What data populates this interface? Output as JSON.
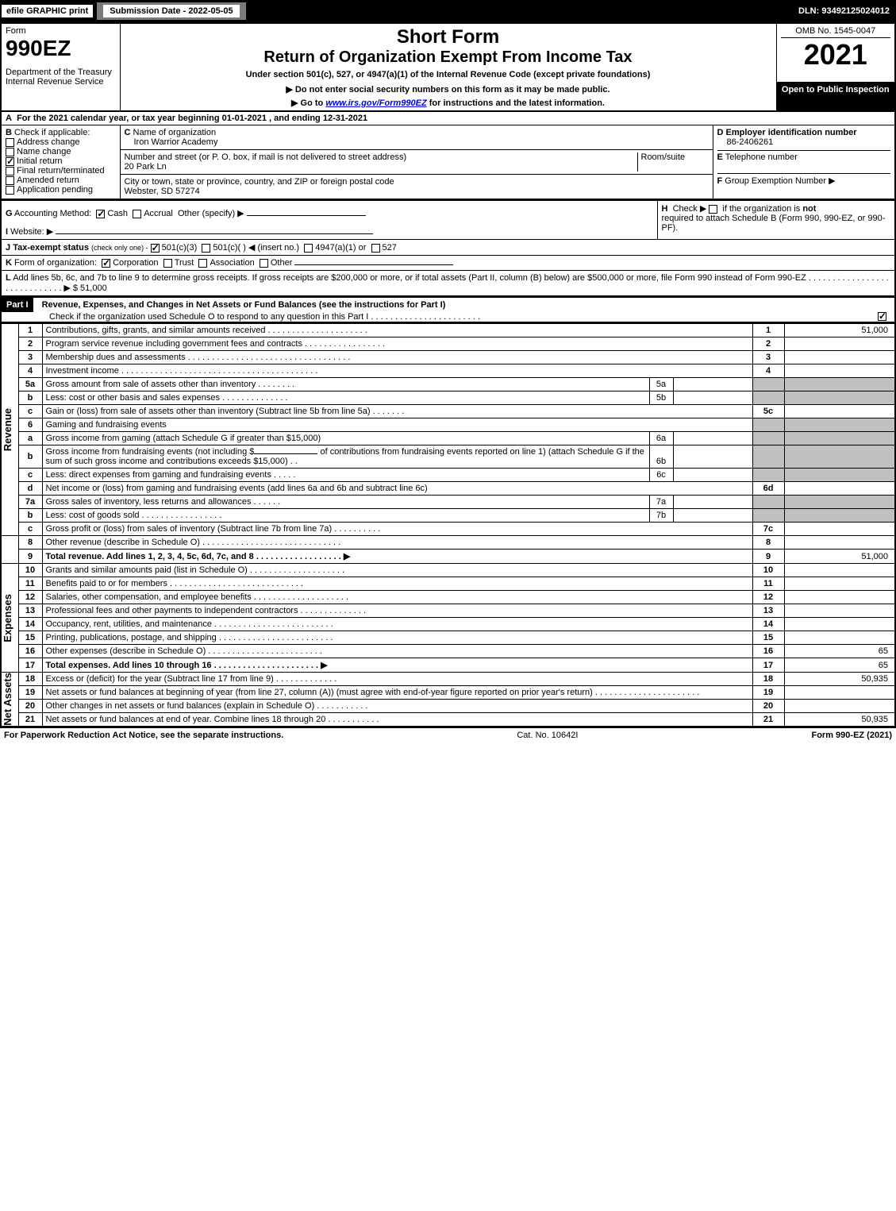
{
  "top": {
    "efile": "efile GRAPHIC print",
    "sub_label": "Submission Date - 2022-05-05",
    "dln": "DLN: 93492125024012"
  },
  "header": {
    "form_word": "Form",
    "form_num": "990EZ",
    "dept": "Department of the Treasury\nInternal Revenue Service",
    "short_form": "Short Form",
    "title": "Return of Organization Exempt From Income Tax",
    "under": "Under section 501(c), 527, or 4947(a)(1) of the Internal Revenue Code (except private foundations)",
    "ssn_warn": "▶ Do not enter social security numbers on this form as it may be made public.",
    "goto": "▶ Go to www.irs.gov/Form990EZ for instructions and the latest information.",
    "omb": "OMB No. 1545-0047",
    "year": "2021",
    "open": "Open to Public Inspection"
  },
  "A": {
    "text": "For the 2021 calendar year, or tax year beginning 01-01-2021 , and ending 12-31-2021"
  },
  "B": {
    "label": "Check if applicable:",
    "opts": [
      {
        "l": "Address change",
        "c": false
      },
      {
        "l": "Name change",
        "c": false
      },
      {
        "l": "Initial return",
        "c": true
      },
      {
        "l": "Final return/terminated",
        "c": false
      },
      {
        "l": "Amended return",
        "c": false
      },
      {
        "l": "Application pending",
        "c": false
      }
    ]
  },
  "C": {
    "name_label": "Name of organization",
    "name": "Iron Warrior Academy",
    "addr_label": "Number and street (or P. O. box, if mail is not delivered to street address)",
    "addr": "20 Park Ln",
    "room_label": "Room/suite",
    "city_label": "City or town, state or province, country, and ZIP or foreign postal code",
    "city": "Webster, SD  57274"
  },
  "D": {
    "label": "Employer identification number",
    "val": "86-2406261"
  },
  "E": {
    "label": "Telephone number",
    "val": ""
  },
  "F": {
    "label": "Group Exemption Number ▶",
    "val": ""
  },
  "G": {
    "label": "Accounting Method:",
    "cash": "Cash",
    "accrual": "Accrual",
    "other": "Other (specify) ▶"
  },
  "H": {
    "text1": "Check ▶",
    "text2": "if the organization is",
    "not": "not",
    "text3": "required to attach Schedule B (Form 990, 990-EZ, or 990-PF)."
  },
  "I": {
    "label": "Website: ▶"
  },
  "J": {
    "label": "Tax-exempt status",
    "hint": "(check only one) -",
    "o1": "501(c)(3)",
    "o2": "501(c)(  )",
    "ins": "◀ (insert no.)",
    "o3": "4947(a)(1) or",
    "o4": "527"
  },
  "K": {
    "label": "Form of organization:",
    "o1": "Corporation",
    "o2": "Trust",
    "o3": "Association",
    "o4": "Other"
  },
  "L": {
    "text": "Add lines 5b, 6c, and 7b to line 9 to determine gross receipts. If gross receipts are $200,000 or more, or if total assets (Part II, column (B) below) are $500,000 or more, file Form 990 instead of Form 990-EZ . . . . . . . . . . . . . . . . . . . . . . . . . . . . . ▶",
    "val": "$ 51,000"
  },
  "part1": {
    "label": "Part I",
    "title": "Revenue, Expenses, and Changes in Net Assets or Fund Balances (see the instructions for Part I)",
    "check_o": "Check if the organization used Schedule O to respond to any question in this Part I . . . . . . . . . . . . . . . . . . . . . . .",
    "check_o_checked": true
  },
  "revenue_label": "Revenue",
  "expenses_label": "Expenses",
  "netassets_label": "Net Assets",
  "lines": {
    "l1": {
      "n": "1",
      "d": "Contributions, gifts, grants, and similar amounts received . . . . . . . . . . . . . . . . . . . . .",
      "nc": "1",
      "v": "51,000"
    },
    "l2": {
      "n": "2",
      "d": "Program service revenue including government fees and contracts . . . . . . . . . . . . . . . . .",
      "nc": "2",
      "v": ""
    },
    "l3": {
      "n": "3",
      "d": "Membership dues and assessments . . . . . . . . . . . . . . . . . . . . . . . . . . . . . . . . . .",
      "nc": "3",
      "v": ""
    },
    "l4": {
      "n": "4",
      "d": "Investment income . . . . . . . . . . . . . . . . . . . . . . . . . . . . . . . . . . . . . . . . .",
      "nc": "4",
      "v": ""
    },
    "l5a": {
      "n": "5a",
      "d": "Gross amount from sale of assets other than inventory . . . . . . . .",
      "sl": "5a",
      "sv": ""
    },
    "l5b": {
      "n": "b",
      "d": "Less: cost or other basis and sales expenses . . . . . . . . . . . . . .",
      "sl": "5b",
      "sv": ""
    },
    "l5c": {
      "n": "c",
      "d": "Gain or (loss) from sale of assets other than inventory (Subtract line 5b from line 5a) . . . . . . .",
      "nc": "5c",
      "v": ""
    },
    "l6": {
      "n": "6",
      "d": "Gaming and fundraising events"
    },
    "l6a": {
      "n": "a",
      "d": "Gross income from gaming (attach Schedule G if greater than $15,000)",
      "sl": "6a",
      "sv": ""
    },
    "l6b": {
      "n": "b",
      "d1": "Gross income from fundraising events (not including $",
      "d2": "of contributions from fundraising events reported on line 1) (attach Schedule G if the sum of such gross income and contributions exceeds $15,000) . .",
      "sl": "6b",
      "sv": ""
    },
    "l6c": {
      "n": "c",
      "d": "Less: direct expenses from gaming and fundraising events . . . . .",
      "sl": "6c",
      "sv": ""
    },
    "l6d": {
      "n": "d",
      "d": "Net income or (loss) from gaming and fundraising events (add lines 6a and 6b and subtract line 6c)",
      "nc": "6d",
      "v": ""
    },
    "l7a": {
      "n": "7a",
      "d": "Gross sales of inventory, less returns and allowances . . . . . .",
      "sl": "7a",
      "sv": ""
    },
    "l7b": {
      "n": "b",
      "d": "Less: cost of goods sold  . . . . . . . . . . . . . . . . .",
      "sl": "7b",
      "sv": ""
    },
    "l7c": {
      "n": "c",
      "d": "Gross profit or (loss) from sales of inventory (Subtract line 7b from line 7a) . . . . . . . . . .",
      "nc": "7c",
      "v": ""
    },
    "l8": {
      "n": "8",
      "d": "Other revenue (describe in Schedule O) . . . . . . . . . . . . . . . . . . . . . . . . . . . . .",
      "nc": "8",
      "v": ""
    },
    "l9": {
      "n": "9",
      "d": "Total revenue. Add lines 1, 2, 3, 4, 5c, 6d, 7c, and 8  . . . . . . . . . . . . . . . . . .  ▶",
      "nc": "9",
      "v": "51,000",
      "bold": true
    },
    "l10": {
      "n": "10",
      "d": "Grants and similar amounts paid (list in Schedule O) . . . . . . . . . . . . . . . . . . . .",
      "nc": "10",
      "v": ""
    },
    "l11": {
      "n": "11",
      "d": "Benefits paid to or for members  . . . . . . . . . . . . . . . . . . . . . . . . . . . .",
      "nc": "11",
      "v": ""
    },
    "l12": {
      "n": "12",
      "d": "Salaries, other compensation, and employee benefits . . . . . . . . . . . . . . . . . . . .",
      "nc": "12",
      "v": ""
    },
    "l13": {
      "n": "13",
      "d": "Professional fees and other payments to independent contractors . . . . . . . . . . . . . .",
      "nc": "13",
      "v": ""
    },
    "l14": {
      "n": "14",
      "d": "Occupancy, rent, utilities, and maintenance . . . . . . . . . . . . . . . . . . . . . . . . .",
      "nc": "14",
      "v": ""
    },
    "l15": {
      "n": "15",
      "d": "Printing, publications, postage, and shipping . . . . . . . . . . . . . . . . . . . . . . . .",
      "nc": "15",
      "v": ""
    },
    "l16": {
      "n": "16",
      "d": "Other expenses (describe in Schedule O)  . . . . . . . . . . . . . . . . . . . . . . . .",
      "nc": "16",
      "v": "65"
    },
    "l17": {
      "n": "17",
      "d": "Total expenses. Add lines 10 through 16  . . . . . . . . . . . . . . . . . . . . . .  ▶",
      "nc": "17",
      "v": "65",
      "bold": true
    },
    "l18": {
      "n": "18",
      "d": "Excess or (deficit) for the year (Subtract line 17 from line 9)  . . . . . . . . . . . . .",
      "nc": "18",
      "v": "50,935"
    },
    "l19": {
      "n": "19",
      "d": "Net assets or fund balances at beginning of year (from line 27, column (A)) (must agree with end-of-year figure reported on prior year's return) . . . . . . . . . . . . . . . . . . . . . .",
      "nc": "19",
      "v": ""
    },
    "l20": {
      "n": "20",
      "d": "Other changes in net assets or fund balances (explain in Schedule O) . . . . . . . . . . .",
      "nc": "20",
      "v": ""
    },
    "l21": {
      "n": "21",
      "d": "Net assets or fund balances at end of year. Combine lines 18 through 20 . . . . . . . . . . .",
      "nc": "21",
      "v": "50,935"
    }
  },
  "footer": {
    "left": "For Paperwork Reduction Act Notice, see the separate instructions.",
    "mid": "Cat. No. 10642I",
    "right": "Form 990-EZ (2021)"
  }
}
